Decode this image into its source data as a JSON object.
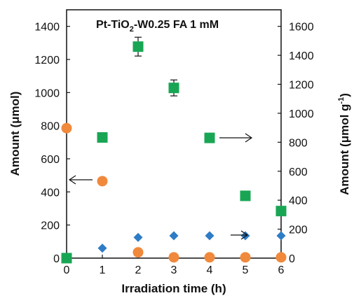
{
  "chart_data": {
    "type": "scatter",
    "title": {
      "prefix": "Pt-TiO",
      "subscript": "2",
      "suffix": "-W0.25  FA 1 mM"
    },
    "xlabel": "Irradiation time (h)",
    "ylabel_left": "Amount (μmol)",
    "ylabel_right": {
      "text": "Amount (μmol g",
      "superscript": "-1",
      "closing": ")"
    },
    "x_ticks": [
      0,
      1,
      2,
      3,
      4,
      5,
      6
    ],
    "xlim": [
      0,
      6
    ],
    "ylim_left": [
      0,
      1500
    ],
    "y_ticks_left": [
      0,
      200,
      400,
      600,
      800,
      1000,
      1200,
      1400
    ],
    "ylim_right": [
      0,
      1714.3
    ],
    "y_ticks_right": [
      0,
      200,
      400,
      600,
      800,
      1000,
      1200,
      1400,
      1600
    ],
    "grid": false,
    "series": [
      {
        "axis": "right",
        "marker": "square",
        "color": "#19a654",
        "x": [
          0,
          1,
          2,
          3,
          4,
          5,
          6
        ],
        "y": [
          0,
          833,
          1460,
          1175,
          830,
          430,
          325
        ],
        "yerr": [
          0,
          27,
          65,
          55,
          27,
          0,
          0
        ]
      },
      {
        "axis": "left",
        "marker": "circle",
        "color": "#f0893c",
        "x": [
          0,
          1,
          2,
          3,
          4,
          5,
          6
        ],
        "y": [
          785,
          465,
          35,
          5,
          5,
          5,
          5
        ]
      },
      {
        "axis": "left",
        "marker": "diamond",
        "color": "#2e7cc6",
        "x": [
          1,
          2,
          3,
          4,
          5,
          6
        ],
        "y": [
          60,
          125,
          135,
          135,
          135,
          135
        ]
      }
    ],
    "annotations": [
      {
        "type": "arrow",
        "direction": "left",
        "points_to": "left axis",
        "near_series": "circle"
      },
      {
        "type": "arrow",
        "direction": "right",
        "points_to": "right axis",
        "near_series": "square"
      },
      {
        "type": "arrow",
        "direction": "right",
        "points_to": "right axis",
        "near_series": "diamond"
      }
    ]
  }
}
